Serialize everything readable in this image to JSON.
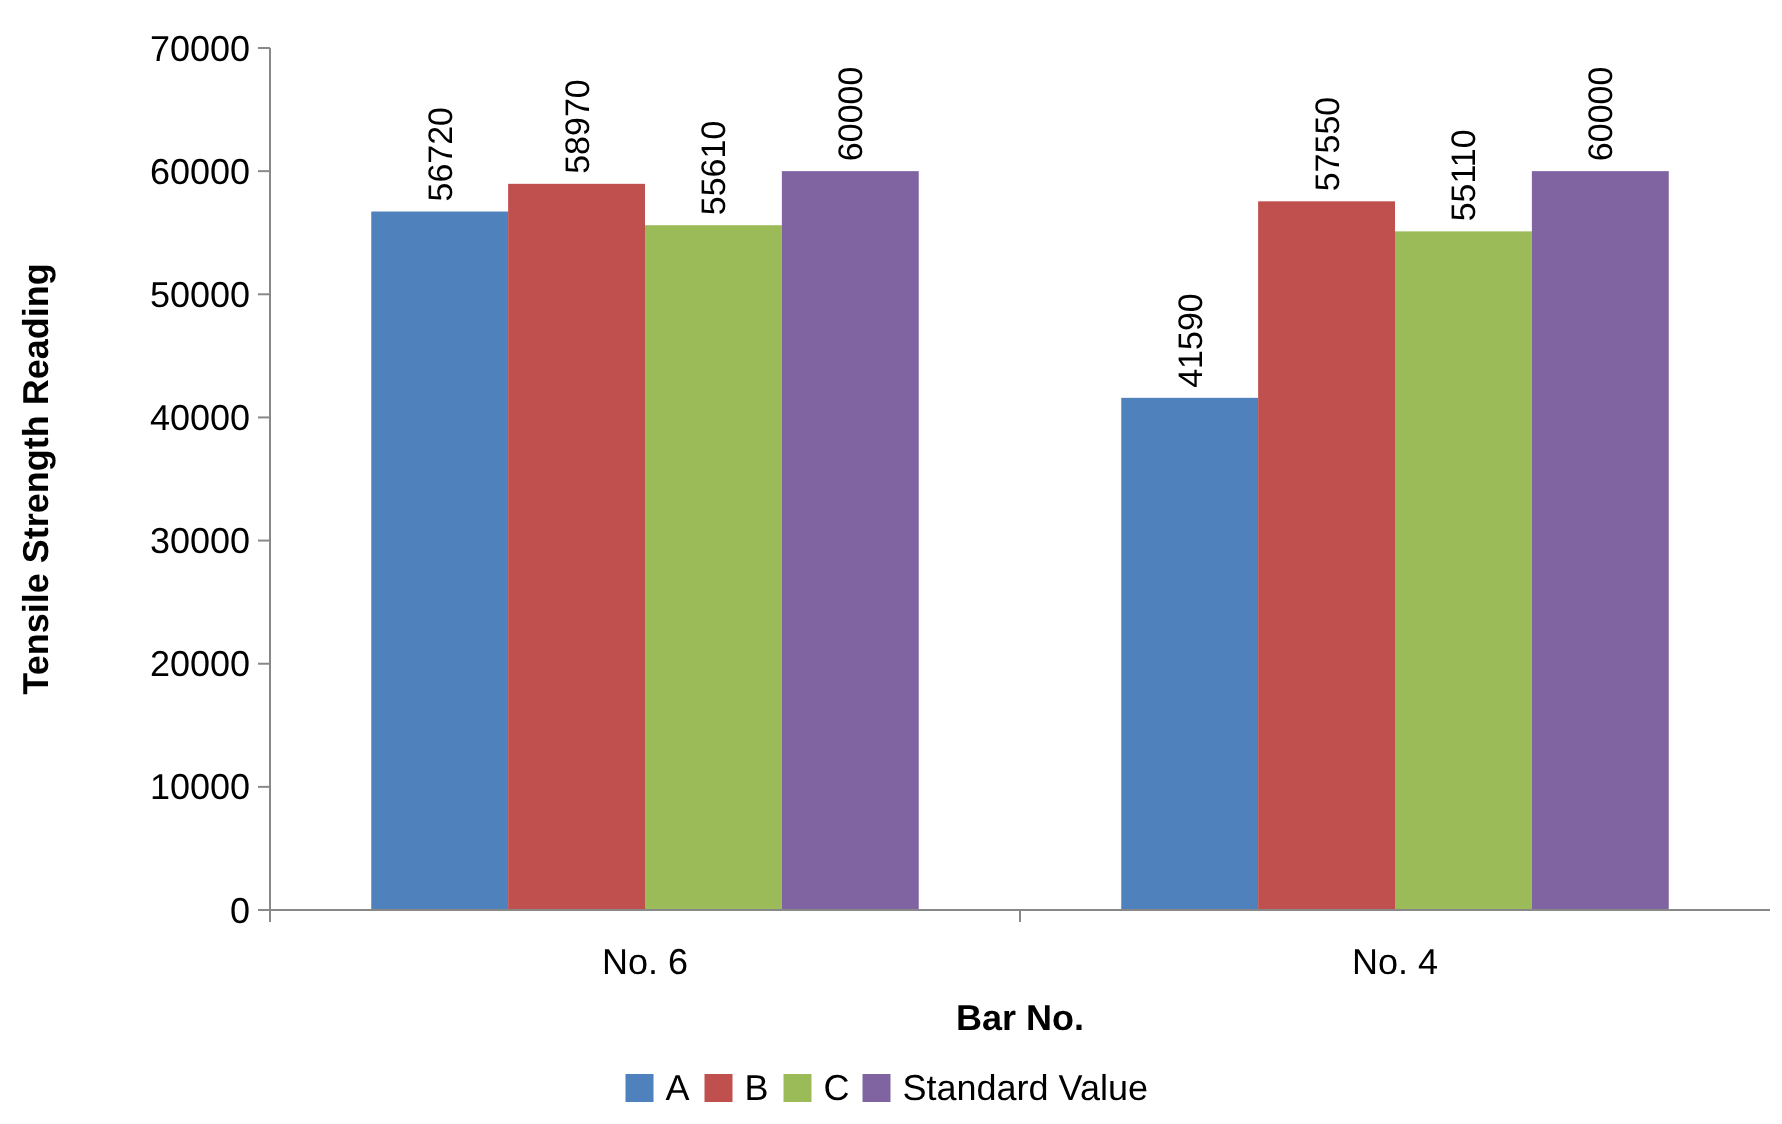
{
  "chart_data": {
    "type": "bar",
    "xlabel": "Bar No.",
    "ylabel": "Tensile Strength Reading",
    "categories": [
      "No. 6",
      "No. 4"
    ],
    "series": [
      {
        "name": "A",
        "color": "#4f81bd",
        "values": [
          56720,
          41590
        ]
      },
      {
        "name": "B",
        "color": "#c0504d",
        "values": [
          58970,
          57550
        ]
      },
      {
        "name": "C",
        "color": "#9bbb59",
        "values": [
          55610,
          55110
        ]
      },
      {
        "name": "Standard Value",
        "color": "#8064a2",
        "values": [
          60000,
          60000
        ]
      }
    ],
    "ylim": [
      0,
      70000
    ],
    "yticks": [
      0,
      10000,
      20000,
      30000,
      40000,
      50000,
      60000,
      70000
    ],
    "grid": false,
    "legend": "bottom",
    "data_labels": true
  }
}
